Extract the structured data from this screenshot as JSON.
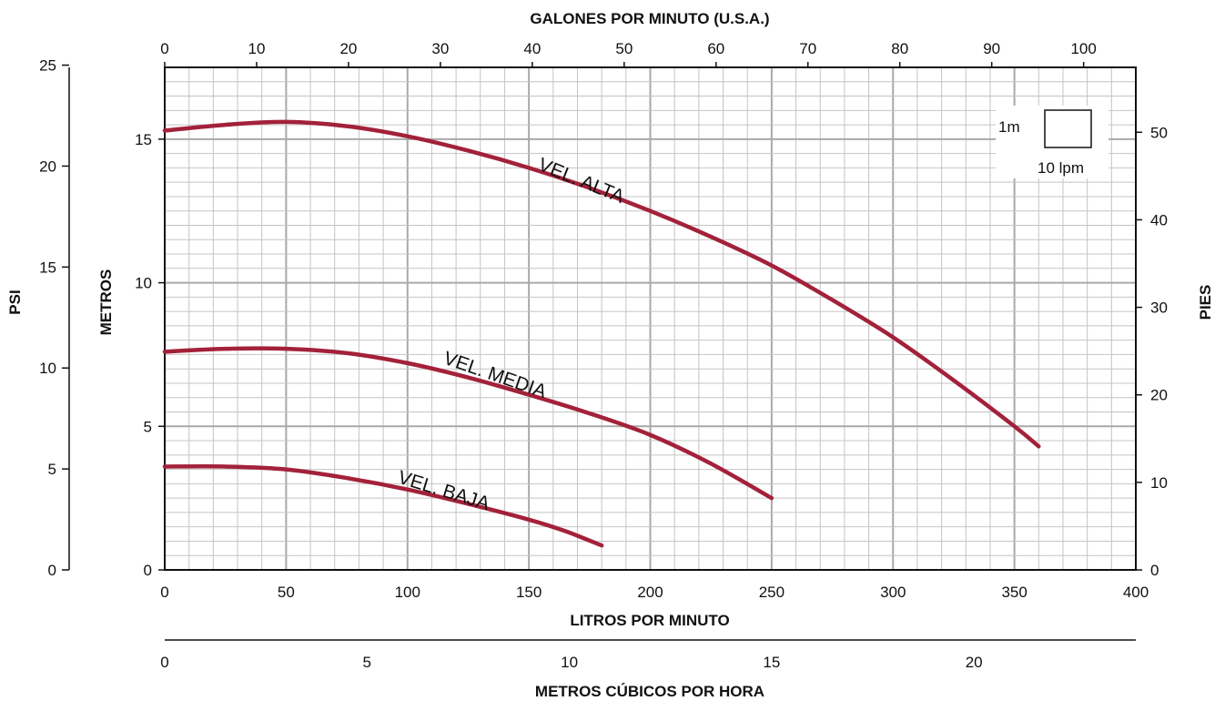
{
  "chart_data": {
    "type": "line",
    "x_axis_bottom": {
      "label": "LITROS POR MINUTO",
      "range": [
        0,
        400
      ],
      "ticks": [
        "0",
        "50",
        "100",
        "150",
        "200",
        "250",
        "300",
        "350",
        "400"
      ]
    },
    "x_axis_top": {
      "label": "GALONES POR MINUTO (U.S.A.)",
      "ticks": [
        "0",
        "10",
        "20",
        "30",
        "40",
        "50",
        "60",
        "70",
        "80",
        "90",
        "100"
      ]
    },
    "x_axis_secondary": {
      "label": "METROS CÚBICOS POR HORA",
      "ticks": [
        "0",
        "5",
        "10",
        "15",
        "20"
      ]
    },
    "y_axis_left": {
      "label": "METROS",
      "range": [
        0,
        17.5
      ],
      "ticks": [
        "0",
        "5",
        "10",
        "15"
      ]
    },
    "y_axis_psi": {
      "label": "PSI",
      "ticks": [
        "0",
        "5",
        "10",
        "15",
        "20",
        "25"
      ]
    },
    "y_axis_right": {
      "label": "PIES",
      "ticks": [
        "0",
        "10",
        "20",
        "30",
        "40",
        "50"
      ]
    },
    "grid": true,
    "legend": {
      "height_label": "1m",
      "flow_label": "10 lpm",
      "position": "top-right"
    },
    "series": [
      {
        "name": "VEL. ALTA",
        "x": [
          0,
          25,
          50,
          75,
          100,
          125,
          150,
          175,
          200,
          225,
          250,
          275,
          300,
          325,
          350,
          360
        ],
        "y": [
          15.3,
          15.5,
          15.6,
          15.45,
          15.1,
          14.6,
          14.0,
          13.3,
          12.5,
          11.6,
          10.6,
          9.4,
          8.1,
          6.6,
          5.0,
          4.3
        ]
      },
      {
        "name": "VEL. MEDIA",
        "x": [
          0,
          25,
          50,
          75,
          100,
          125,
          150,
          175,
          200,
          225,
          250
        ],
        "y": [
          7.6,
          7.7,
          7.7,
          7.55,
          7.2,
          6.7,
          6.1,
          5.45,
          4.7,
          3.7,
          2.5
        ]
      },
      {
        "name": "VEL. BAJA",
        "x": [
          0,
          25,
          50,
          75,
          100,
          125,
          150,
          165,
          180
        ],
        "y": [
          3.6,
          3.6,
          3.5,
          3.2,
          2.8,
          2.3,
          1.75,
          1.35,
          0.85
        ]
      }
    ]
  }
}
